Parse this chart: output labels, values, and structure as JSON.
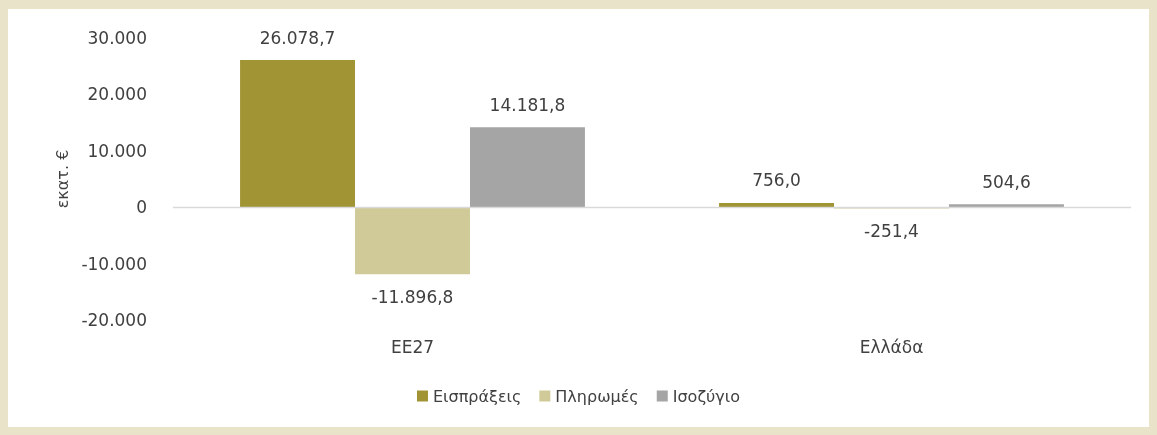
{
  "chart_data": {
    "type": "bar",
    "ylabel": "εκατ. €",
    "categories": [
      "ΕΕ27",
      "Ελλάδα"
    ],
    "series": [
      {
        "name": "Εισπράξεις",
        "color": "#a09434",
        "values": [
          26078.7,
          756.0
        ],
        "value_labels": [
          "26.078,7",
          "756,0"
        ]
      },
      {
        "name": "Πληρωμές",
        "color": "#cfca98",
        "values": [
          -11896.8,
          -251.4
        ],
        "value_labels": [
          "-11.896,8",
          "-251,4"
        ]
      },
      {
        "name": "Ισοζύγιο",
        "color": "#a5a5a5",
        "values": [
          14181.8,
          504.6
        ],
        "value_labels": [
          "14.181,8",
          "504,6"
        ]
      }
    ],
    "ylim": [
      -20000,
      30000
    ],
    "yticks": [
      {
        "value": -20000,
        "label": "-20.000"
      },
      {
        "value": -10000,
        "label": "-10.000"
      },
      {
        "value": 0,
        "label": "0"
      },
      {
        "value": 10000,
        "label": "10.000"
      },
      {
        "value": 20000,
        "label": "20.000"
      },
      {
        "value": 30000,
        "label": "30.000"
      }
    ],
    "ref_lines": [
      {
        "axis": "y",
        "value": 0,
        "color": "#d9d9d9"
      }
    ],
    "grid": false,
    "legend": "bottom"
  }
}
